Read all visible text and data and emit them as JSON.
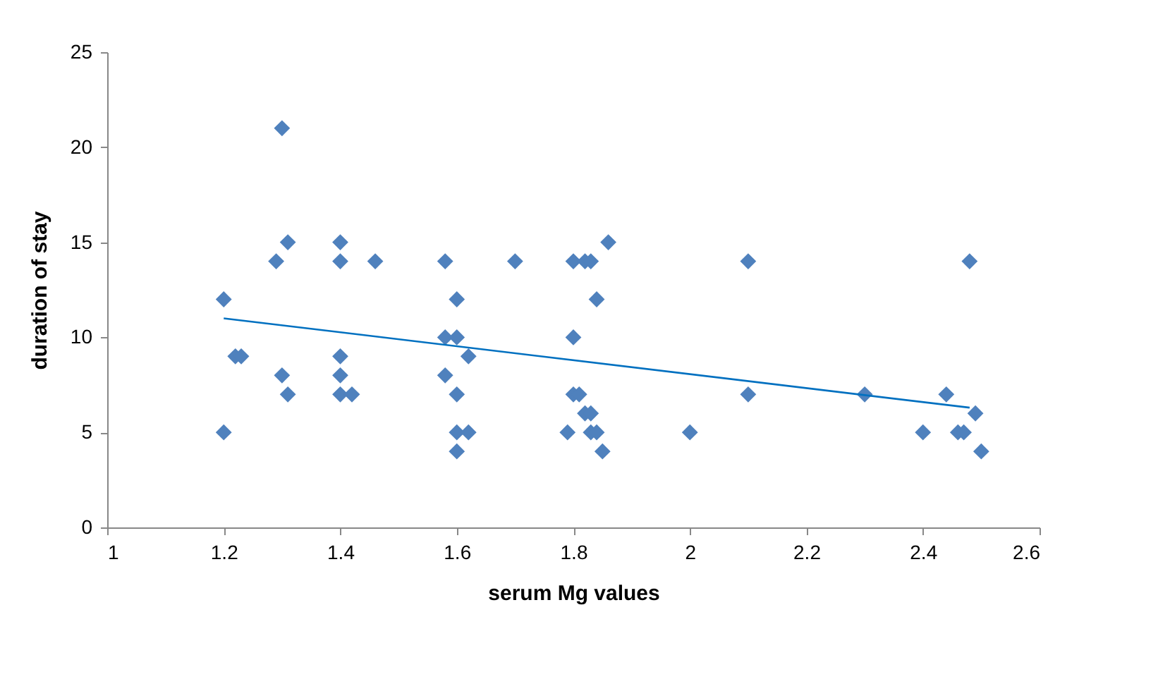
{
  "chart_data": {
    "type": "scatter",
    "xlabel": "serum Mg values",
    "ylabel": "duration of stay",
    "xlim": [
      1,
      2.6
    ],
    "xticks": [
      1,
      1.2,
      1.4,
      1.6,
      1.8,
      2,
      2.2,
      2.4,
      2.6
    ],
    "ylim": [
      0,
      25
    ],
    "yticks": [
      0,
      5,
      10,
      15,
      20,
      25
    ],
    "grid": false,
    "series": [
      {
        "color": "#4f81bd",
        "marker": "diamond",
        "x": [
          1.2,
          1.2,
          1.22,
          1.23,
          1.3,
          1.29,
          1.31,
          1.3,
          1.31,
          1.4,
          1.4,
          1.4,
          1.4,
          1.4,
          1.42,
          1.46,
          1.58,
          1.58,
          1.6,
          1.58,
          1.6,
          1.6,
          1.6,
          1.6,
          1.62,
          1.62,
          1.7,
          1.8,
          1.82,
          1.83,
          1.86,
          1.84,
          1.8,
          1.8,
          1.81,
          1.82,
          1.83,
          1.79,
          1.83,
          1.84,
          1.85,
          2.0,
          2.1,
          2.1,
          2.3,
          2.4,
          2.44,
          2.46,
          2.47,
          2.48,
          2.49,
          2.5
        ],
        "values": [
          12,
          5,
          9,
          9,
          21,
          14,
          15,
          8,
          7,
          15,
          14,
          9,
          8,
          7,
          7,
          14,
          14,
          10,
          10,
          8,
          12,
          7,
          5,
          4,
          5,
          9,
          14,
          14,
          14,
          14,
          15,
          12,
          10,
          7,
          7,
          6,
          6,
          5,
          5,
          5,
          4,
          5,
          14,
          7,
          7,
          5,
          7,
          5,
          5,
          14,
          6,
          4
        ]
      },
      {
        "type": "line",
        "color": "#0070c0",
        "x": [
          1.2,
          2.48
        ],
        "values": [
          11.0,
          6.3
        ]
      }
    ]
  }
}
